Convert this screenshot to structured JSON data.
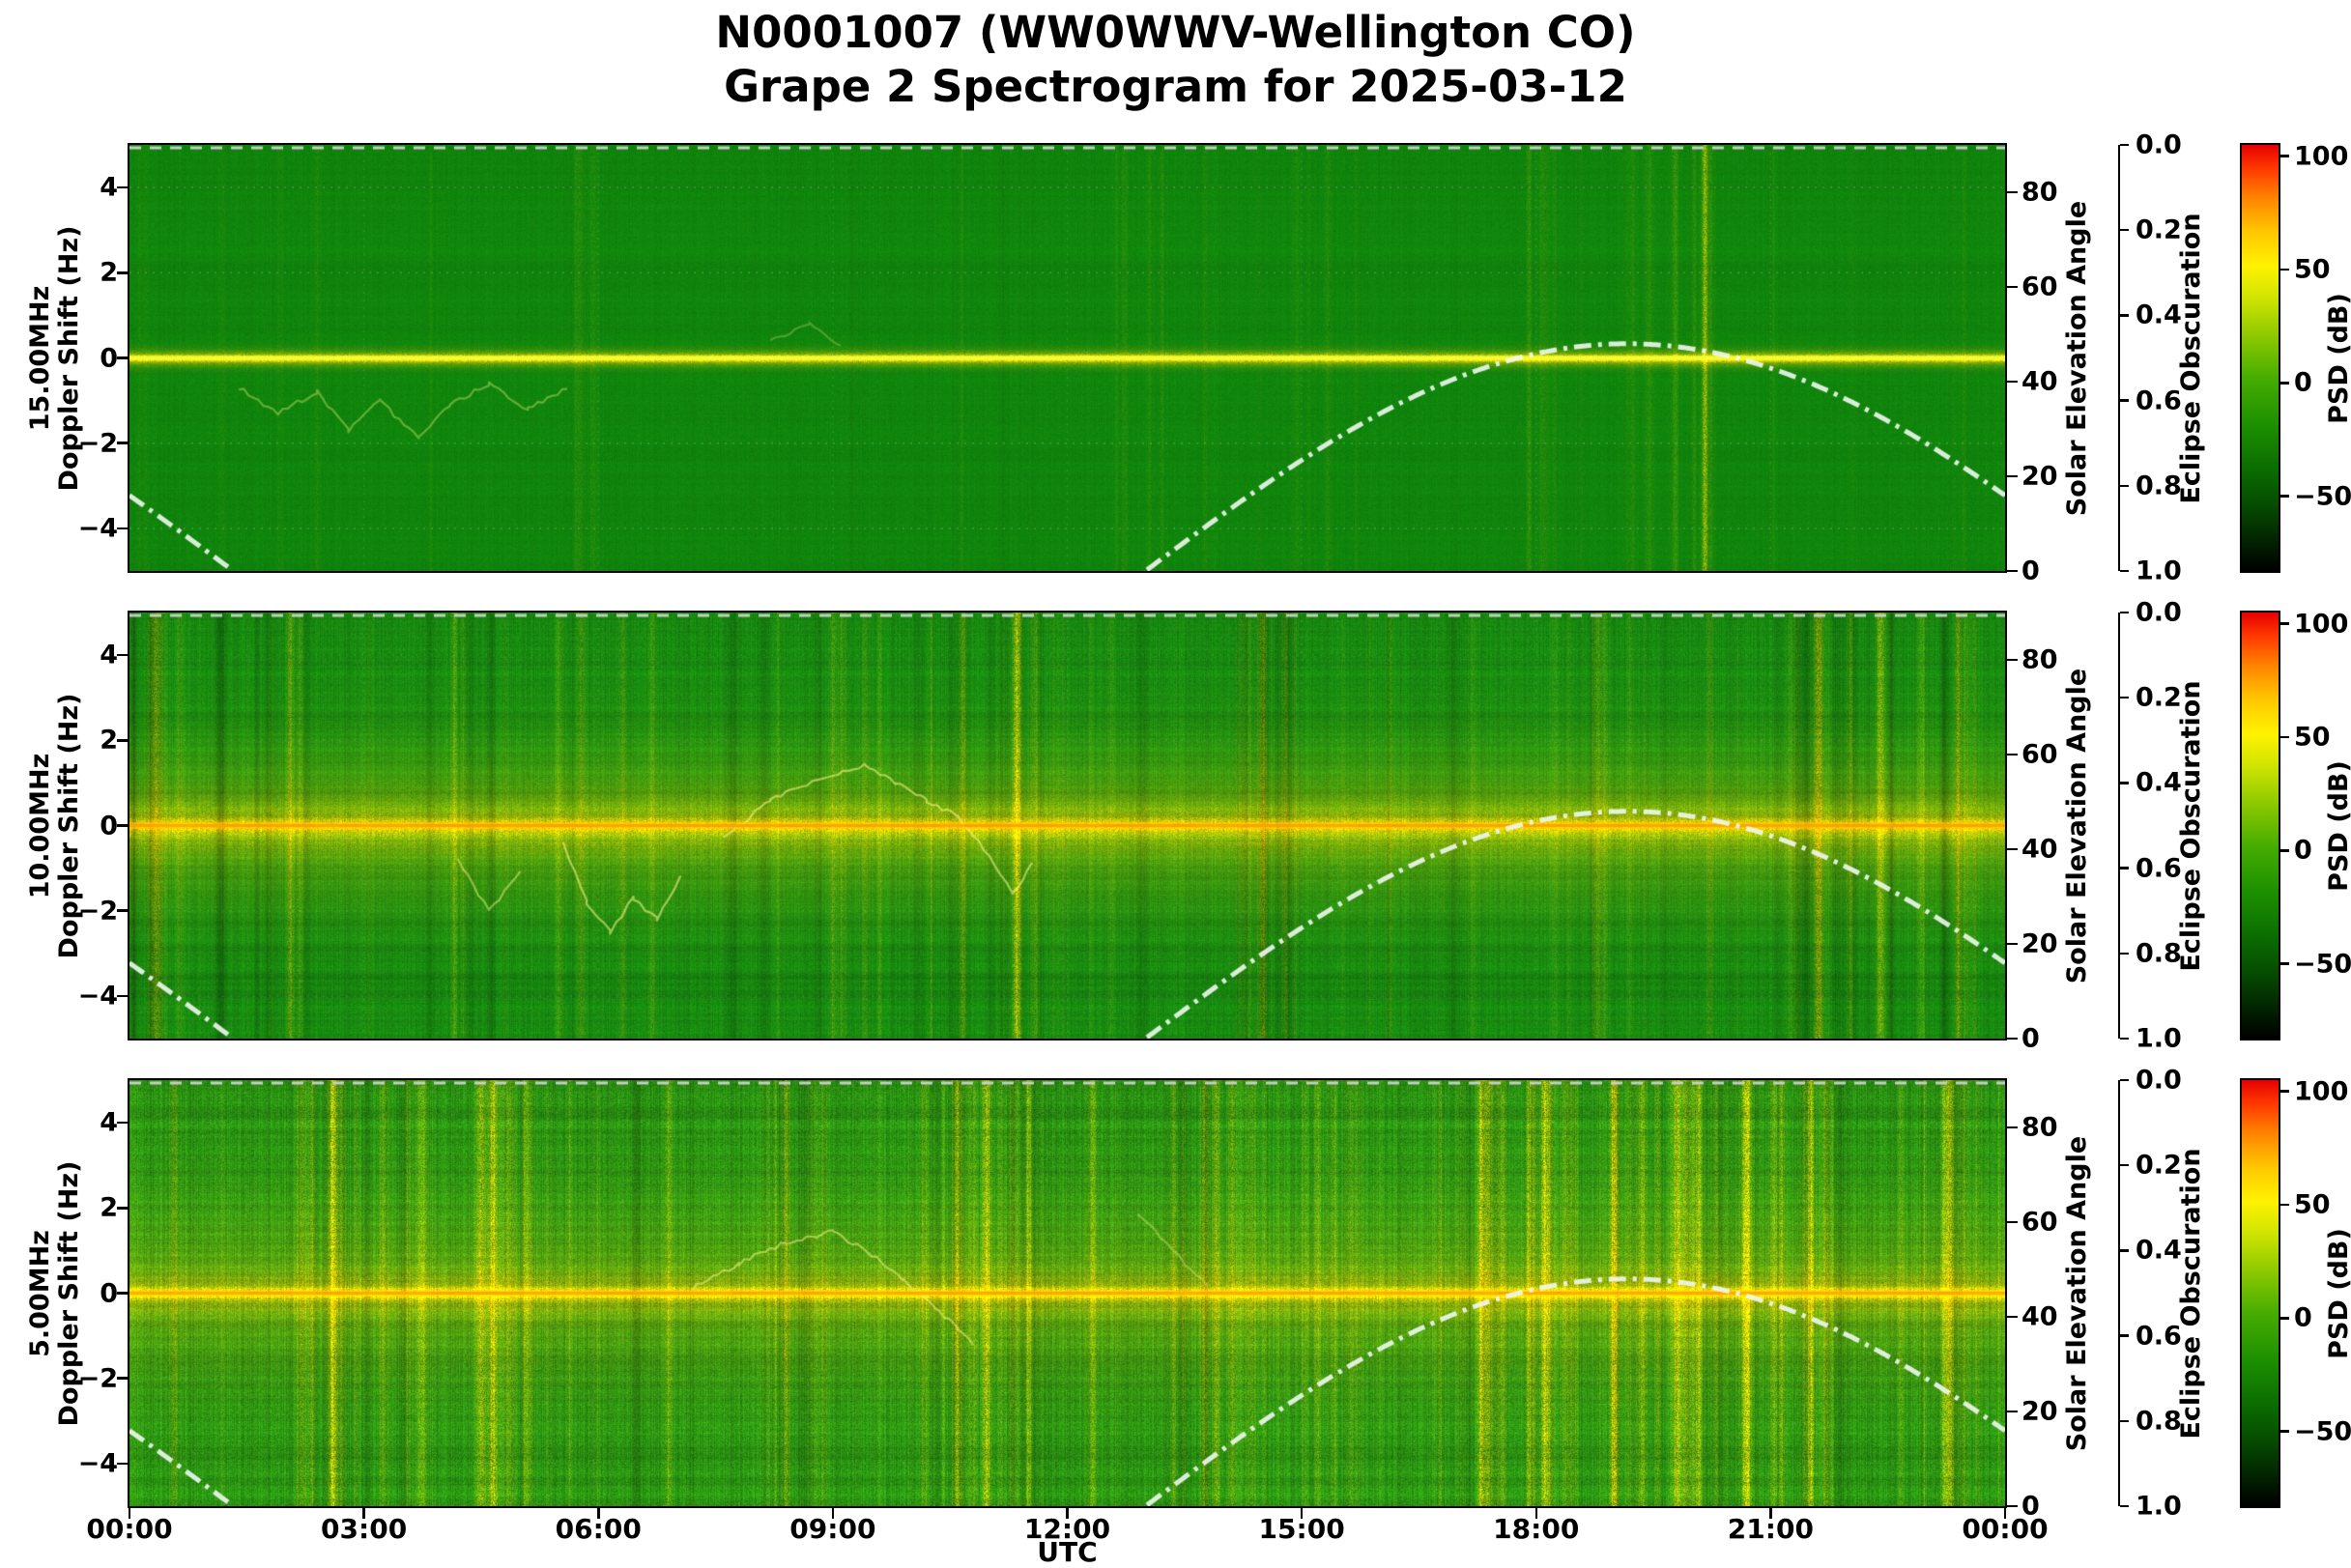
{
  "title": {
    "line1": "N0001007 (WW0WWV-Wellington CO)",
    "line2": "Grape 2 Spectrogram for 2025-03-12"
  },
  "xaxis": {
    "label": "UTC",
    "tick_labels": [
      "00:00",
      "03:00",
      "06:00",
      "09:00",
      "12:00",
      "15:00",
      "18:00",
      "21:00",
      "00:00"
    ],
    "tick_hours": [
      0,
      3,
      6,
      9,
      12,
      15,
      18,
      21,
      24
    ],
    "range_hours": [
      0,
      24
    ]
  },
  "doppler_axis": {
    "label_line2": "Doppler Shift (Hz)",
    "tick_labels": [
      "−4",
      "−2",
      "0",
      "2",
      "4"
    ],
    "tick_values": [
      -4,
      -2,
      0,
      2,
      4
    ],
    "ylim": [
      -5,
      5
    ]
  },
  "solar_axis": {
    "label": "Solar Elevation Angle",
    "tick_labels": [
      "0",
      "20",
      "40",
      "60",
      "80"
    ],
    "tick_values": [
      0,
      20,
      40,
      60,
      80
    ],
    "range": [
      0,
      90
    ]
  },
  "eclipse_axis": {
    "label": "Eclipse Obscuration",
    "tick_labels": [
      "0.0",
      "0.2",
      "0.4",
      "0.6",
      "0.8",
      "1.0"
    ],
    "tick_values": [
      0,
      0.2,
      0.4,
      0.6,
      0.8,
      1.0
    ],
    "range": [
      0,
      1
    ],
    "inverted": true
  },
  "colorbar": {
    "label": "PSD (dB)",
    "tick_labels": [
      "100",
      "50",
      "0",
      "−50"
    ],
    "tick_values": [
      100,
      50,
      0,
      -50
    ],
    "vmax": 105,
    "vmin": -83,
    "gradient_stops": [
      [
        0,
        "#e60000"
      ],
      [
        0.055,
        "#ff3800"
      ],
      [
        0.125,
        "#ff8400"
      ],
      [
        0.205,
        "#ffc800"
      ],
      [
        0.285,
        "#fff200"
      ],
      [
        0.36,
        "#cfe400"
      ],
      [
        0.45,
        "#8cc800"
      ],
      [
        0.55,
        "#45ac00"
      ],
      [
        0.66,
        "#1c8f00"
      ],
      [
        0.76,
        "#0b6d00"
      ],
      [
        0.85,
        "#054a00"
      ],
      [
        0.93,
        "#022300"
      ],
      [
        1,
        "#000000"
      ]
    ]
  },
  "solar_curve": {
    "sunrise_utc": 13.0,
    "daylength_hours": 12.33,
    "peak_elevation_deg": 48,
    "line_style": "white dash-dot"
  },
  "eclipse_curve": {
    "constant_value": 0.0,
    "line_style": "light-gray dashed"
  },
  "panels": [
    {
      "id": "15mhz",
      "freq_label": "15.00MHz",
      "texture": {
        "seed": 11,
        "base": [
          16,
          132,
          12
        ],
        "noise": 0.3,
        "colNoise": 0.05,
        "rowNoise": 0.03,
        "bands": [
          {
            "hz": 0,
            "sigma": 6,
            "strength": 0.5
          },
          {
            "hz": 0,
            "sigma": 2.2,
            "strength": 0.9
          }
        ],
        "streaks": {
          "count": 60,
          "strength": 0.09,
          "clusterHours": [
            18.4,
            19.3,
            20.1,
            6.0
          ],
          "clusterWeight": 0.4,
          "darkFrac": 0.08,
          "darkStrength": 0.05
        },
        "explicitStreaks": [
          [
            20.15,
            0.4,
            1.8
          ],
          [
            17.9,
            0.14,
            1.6
          ],
          [
            13.2,
            0.08,
            1.5
          ]
        ],
        "traces": [
          {
            "alpha": 0.35,
            "pts": [
              [
                1.4,
                -0.7
              ],
              [
                1.9,
                -1.3
              ],
              [
                2.4,
                -0.8
              ],
              [
                2.8,
                -1.7
              ],
              [
                3.2,
                -1.0
              ],
              [
                3.7,
                -1.9
              ],
              [
                4.1,
                -1.1
              ],
              [
                4.6,
                -0.6
              ],
              [
                5.1,
                -1.2
              ],
              [
                5.6,
                -0.7
              ]
            ]
          },
          {
            "alpha": 0.25,
            "pts": [
              [
                8.2,
                0.4
              ],
              [
                8.7,
                0.8
              ],
              [
                9.1,
                0.3
              ]
            ]
          }
        ],
        "centerLine": {
          "glow": "rgba(235,255,70,0.5)",
          "glowW": 5,
          "core": "#f0ff3a",
          "coreW": 2.5
        },
        "grid": {
          "h": 0.2,
          "v": 0.1
        }
      }
    },
    {
      "id": "10mhz",
      "freq_label": "10.00MHz",
      "texture": {
        "seed": 22,
        "base": [
          24,
          138,
          16
        ],
        "noise": 0.55,
        "colNoise": 0.13,
        "rowNoise": 0.09,
        "bands": [
          {
            "hz": 0,
            "sigma": 55,
            "strength": 0.26
          },
          {
            "hz": 0,
            "sigma": 18,
            "strength": 0.3
          },
          {
            "hz": 0,
            "sigma": 4.5,
            "strength": 0.55
          }
        ],
        "streaks": {
          "count": 160,
          "strength": 0.15,
          "clusterHours": [
            0.4,
            2.0,
            4.1,
            11.3,
            14.5,
            21.6,
            22.3,
            23.3
          ],
          "clusterWeight": 0.45,
          "darkFrac": 0.28,
          "darkStrength": 0.16
        },
        "explicitStreaks": [
          [
            0.35,
            0.3,
            3.5
          ],
          [
            11.35,
            0.45,
            2.5
          ],
          [
            14.5,
            0.28,
            2
          ],
          [
            21.6,
            0.4,
            2.5
          ],
          [
            22.4,
            0.35,
            2.5
          ],
          [
            23.4,
            0.35,
            2
          ],
          [
            4.15,
            0.22,
            2
          ],
          [
            2.05,
            0.18,
            2
          ],
          [
            9.0,
            0.15,
            2
          ]
        ],
        "traces": [
          {
            "alpha": 0.55,
            "pts": [
              [
                5.55,
                -0.4
              ],
              [
                5.85,
                -1.8
              ],
              [
                6.15,
                -2.5
              ],
              [
                6.45,
                -1.7
              ],
              [
                6.75,
                -2.2
              ],
              [
                7.05,
                -1.2
              ]
            ]
          },
          {
            "alpha": 0.55,
            "pts": [
              [
                7.6,
                -0.3
              ],
              [
                8.2,
                0.6
              ],
              [
                8.8,
                1.1
              ],
              [
                9.4,
                1.4
              ],
              [
                9.8,
                1.0
              ],
              [
                10.2,
                0.6
              ],
              [
                10.6,
                0.2
              ],
              [
                11.0,
                -0.7
              ],
              [
                11.3,
                -1.6
              ],
              [
                11.55,
                -0.9
              ]
            ]
          },
          {
            "alpha": 0.45,
            "pts": [
              [
                4.2,
                -0.8
              ],
              [
                4.6,
                -2.0
              ],
              [
                5.0,
                -1.1
              ]
            ]
          }
        ],
        "centerLine": {
          "glow": "rgba(255,205,0,0.55)",
          "glowW": 7,
          "core": "#ff9d00",
          "coreW": 3
        },
        "grid": {
          "h": 0.1,
          "v": 0.1
        }
      }
    },
    {
      "id": "5mhz",
      "freq_label": "5.00MHz",
      "texture": {
        "seed": 33,
        "base": [
          42,
          146,
          18
        ],
        "noise": 1.0,
        "colNoise": 0.22,
        "rowNoise": 0.1,
        "bands": [
          {
            "hz": 0,
            "sigma": 60,
            "strength": 0.2
          },
          {
            "hz": 0,
            "sigma": 15,
            "strength": 0.33
          },
          {
            "hz": 0,
            "sigma": 3.5,
            "strength": 0.6
          }
        ],
        "streaks": {
          "count": 280,
          "strength": 0.2,
          "clusterHours": [
            2.6,
            4.7,
            8.4,
            10.9,
            11.4,
            13.9,
            17.3,
            18.2,
            19.1,
            20.0,
            20.8,
            21.6,
            23.2
          ],
          "clusterWeight": 0.6,
          "darkFrac": 0.15,
          "darkStrength": 0.13
        },
        "explicitStreaks": [
          [
            4.65,
            0.5,
            3
          ],
          [
            10.95,
            0.45,
            2.5
          ],
          [
            11.5,
            0.35,
            2
          ],
          [
            2.6,
            0.3,
            2
          ],
          [
            8.4,
            0.28,
            2.5
          ],
          [
            13.9,
            0.3,
            2
          ],
          [
            17.3,
            0.45,
            2.5
          ],
          [
            18.1,
            0.5,
            2.5
          ],
          [
            19.0,
            0.55,
            2.5
          ],
          [
            19.8,
            0.45,
            2.5
          ],
          [
            20.7,
            0.5,
            2.5
          ],
          [
            21.5,
            0.4,
            2.5
          ],
          [
            23.3,
            0.45,
            2.5
          ],
          [
            6.9,
            0.22,
            2
          ],
          [
            15.2,
            0.2,
            2
          ]
        ],
        "traces": [
          {
            "alpha": 0.5,
            "pts": [
              [
                7.2,
                0.1
              ],
              [
                7.8,
                0.7
              ],
              [
                8.4,
                1.2
              ],
              [
                9.0,
                1.45
              ],
              [
                9.5,
                0.9
              ],
              [
                9.9,
                0.3
              ],
              [
                10.3,
                -0.3
              ],
              [
                10.8,
                -1.2
              ]
            ]
          },
          {
            "alpha": 0.35,
            "pts": [
              [
                12.9,
                1.9
              ],
              [
                13.2,
                1.3
              ],
              [
                13.5,
                0.7
              ],
              [
                13.8,
                0.2
              ]
            ]
          }
        ],
        "centerLine": {
          "glow": "rgba(255,195,0,0.5)",
          "glowW": 6,
          "core": "#ffa200",
          "coreW": 3
        },
        "grid": {
          "h": 0.08,
          "v": 0.08
        }
      }
    }
  ],
  "chart_data": {
    "type": "heatmap",
    "subtype": "doppler_spectrogram",
    "title": "N0001007 (WW0WWV-Wellington CO) — Grape 2 Spectrogram for 2025-03-12",
    "station": "N0001007",
    "site": "WW0WWV-Wellington CO",
    "date": "2025-03-12",
    "xlabel": "UTC",
    "x_range_hours": [
      0,
      24
    ],
    "x_ticks": [
      "00:00",
      "03:00",
      "06:00",
      "09:00",
      "12:00",
      "15:00",
      "18:00",
      "21:00",
      "00:00"
    ],
    "panels": [
      {
        "frequency_mhz": 15.0,
        "ylabel": "15.00MHz Doppler Shift (Hz)",
        "ylim": [
          -5,
          5
        ],
        "yticks": [
          -4,
          -2,
          0,
          2,
          4
        ],
        "description": "Mostly uniform green (~0 dB) background; sharp yellow carrier line at 0 Hz; faint Doppler scribbles 01:30–06:00 UTC down to about −2 Hz; thin bright vertical streak near 20:10 UTC."
      },
      {
        "frequency_mhz": 10.0,
        "ylabel": "10.00MHz Doppler Shift (Hz)",
        "ylim": [
          -5,
          5
        ],
        "yticks": [
          -4,
          -2,
          0,
          2,
          4
        ],
        "description": "Diffuse yellow band within about ±1 Hz of the carrier; wavy ionospheric Doppler traces 04:00–11:30 UTC between +1.5 and −2.5 Hz; many bright and dark vertical interference streaks."
      },
      {
        "frequency_mhz": 5.0,
        "ylabel": "5.00MHz Doppler Shift (Hz)",
        "ylim": [
          -5,
          5
        ],
        "yticks": [
          -4,
          -2,
          0,
          2,
          4
        ],
        "description": "Noisy speckled green; broad yellow band at 0 Hz; dense bright vertical streaks especially 17:00–22:00 UTC; Doppler arc 07:00–11:00 UTC reaching about +1.5 Hz."
      }
    ],
    "right_axis_1": {
      "label": "Solar Elevation Angle",
      "range": [
        0,
        90
      ],
      "ticks": [
        0,
        20,
        40,
        60,
        80
      ]
    },
    "right_axis_2": {
      "label": "Eclipse Obscuration",
      "range": [
        0.0,
        1.0
      ],
      "inverted": true,
      "ticks": [
        0.0,
        0.2,
        0.4,
        0.6,
        0.8,
        1.0
      ]
    },
    "colorbar": {
      "label": "PSD (dB)",
      "ticks": [
        100,
        50,
        0,
        -50
      ]
    },
    "series": [
      {
        "name": "solar_elevation_deg",
        "style": "white dash-dot",
        "x_hours": [
          0,
          1,
          1.33,
          13,
          14,
          15,
          16,
          17,
          18,
          19,
          19.2,
          20,
          21,
          22,
          23,
          24
        ],
        "values": [
          16,
          4,
          0,
          0,
          12.1,
          23.5,
          33.1,
          40.3,
          45.9,
          48,
          48,
          47,
          42.8,
          36.1,
          26.8,
          16
        ]
      },
      {
        "name": "eclipse_obscuration",
        "style": "gray dashed",
        "value_constant": 0.0
      }
    ]
  }
}
